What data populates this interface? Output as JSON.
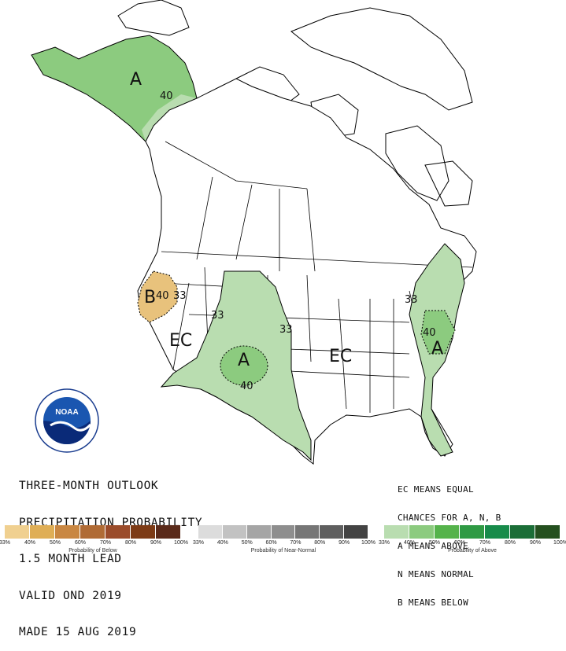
{
  "outlook": {
    "line1": "THREE-MONTH OUTLOOK",
    "line2": "PRECIPITATION PROBABILITY",
    "line3": "1.5 MONTH LEAD",
    "line4": "VALID OND 2019",
    "line5": "MADE 15 AUG 2019"
  },
  "key": {
    "line1": "EC MEANS EQUAL",
    "line2": "CHANCES FOR A, N, B",
    "line3": "A MEANS ABOVE",
    "line4": "N MEANS NORMAL",
    "line5": "B MEANS BELOW"
  },
  "map_labels": {
    "alaska_a": "A",
    "alaska_40": "40",
    "west_b": "B",
    "west_40": "40",
    "west_33a": "33",
    "west_33b": "33",
    "west_ec": "EC",
    "colorado_33": "33",
    "southwest_a": "A",
    "southwest_40": "40",
    "central_ec": "EC",
    "east_33": "33",
    "east_40": "40",
    "east_a": "A"
  },
  "colors": {
    "above_light": "#b9ddb0",
    "above_medium": "#8ccb7f",
    "below_light": "#f0d090",
    "below_medium": "#e0b060"
  },
  "legend": {
    "below": {
      "caption": "Probability of Below",
      "ticks": [
        "33%",
        "40%",
        "50%",
        "60%",
        "70%",
        "80%",
        "90%",
        "100%"
      ],
      "colors": [
        "#f0d090",
        "#dfae56",
        "#c98742",
        "#b06b35",
        "#9b4c2b",
        "#7d3b16",
        "#5a2a1a"
      ]
    },
    "normal": {
      "caption": "Probability of Near-Normal",
      "ticks": [
        "33%",
        "40%",
        "50%",
        "60%",
        "70%",
        "80%",
        "90%",
        "100%"
      ],
      "colors": [
        "#dcdcdc",
        "#c2c2c2",
        "#a5a5a5",
        "#8e8e8e",
        "#767676",
        "#5f5f5f",
        "#434343"
      ]
    },
    "above": {
      "caption": "Probability of Above",
      "ticks": [
        "33%",
        "40%",
        "50%",
        "60%",
        "70%",
        "80%",
        "90%",
        "100%"
      ],
      "colors": [
        "#b9ddb0",
        "#8ccb7f",
        "#55b34b",
        "#2f9a44",
        "#178b4a",
        "#1b6e37",
        "#24501f"
      ]
    }
  },
  "logo": {
    "text": "NOAA",
    "ring": "NATIONAL OCEANIC AND ATMOSPHERIC ADMINISTRATION",
    "ring2": "U.S. DEPARTMENT OF COMMERCE"
  }
}
